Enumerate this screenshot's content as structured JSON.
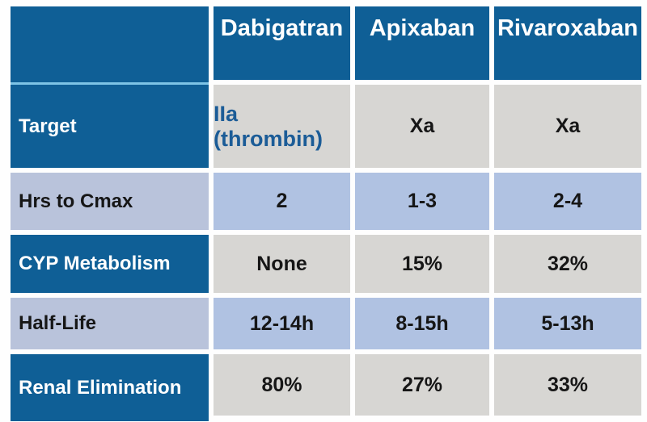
{
  "table": {
    "columns": [
      "Dabigatran",
      "Apixaban",
      "Rivaroxaban"
    ],
    "rows": [
      {
        "label": "Target",
        "values": [
          "IIa (thrombin)",
          "Xa",
          "Xa"
        ]
      },
      {
        "label": "Hrs to Cmax",
        "values": [
          "2",
          "1-3",
          "2-4"
        ]
      },
      {
        "label": "CYP Metabolism",
        "values": [
          "None",
          "15%",
          "32%"
        ]
      },
      {
        "label": "Half-Life",
        "values": [
          "12-14h",
          "8-15h",
          "5-13h"
        ]
      },
      {
        "label": "Renal Elimination",
        "values": [
          "80%",
          "27%",
          "33%"
        ]
      }
    ]
  },
  "chart_data": {
    "type": "table",
    "title": "",
    "columns": [
      "",
      "Dabigatran",
      "Apixaban",
      "Rivaroxaban"
    ],
    "rows": [
      [
        "Target",
        "IIa (thrombin)",
        "Xa",
        "Xa"
      ],
      [
        "Hrs to Cmax",
        "2",
        "1-3",
        "2-4"
      ],
      [
        "CYP Metabolism",
        "None",
        "15%",
        "32%"
      ],
      [
        "Half-Life",
        "12-14h",
        "8-15h",
        "5-13h"
      ],
      [
        "Renal Elimination",
        "80%",
        "27%",
        "33%"
      ]
    ]
  },
  "colors": {
    "header_blue": "#0f5f96",
    "row_periwinkle_label": "#b9c3db",
    "row_periwinkle_data": "#b0c2e2",
    "row_gray_data": "#d7d6d3",
    "accent_text_blue": "#1b5c97",
    "header_separator_blue": "#7ec4e6",
    "text_dark": "#161616",
    "text_white": "#ffffff"
  }
}
